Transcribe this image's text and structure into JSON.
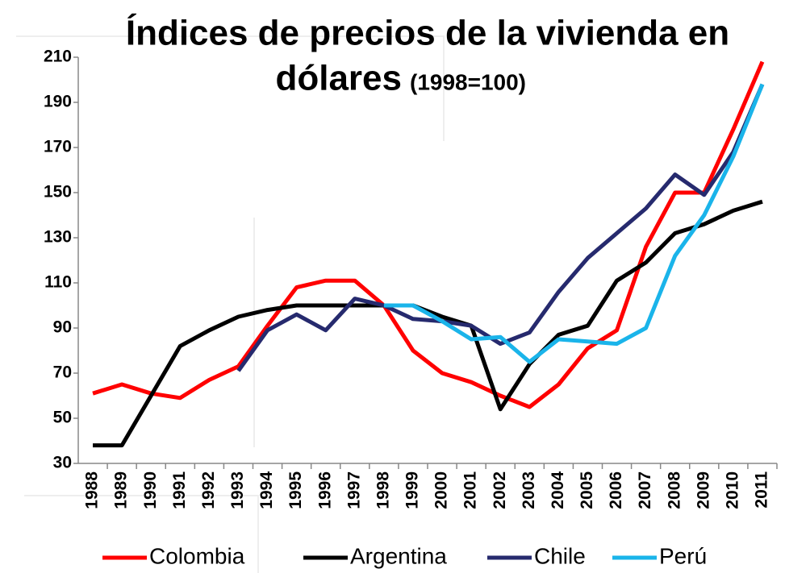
{
  "chart_data": {
    "type": "line",
    "title_lines": [
      "Índices de precios de la vivienda en",
      "dólares"
    ],
    "title_suffix": "(1998=100)",
    "categories": [
      "1988",
      "1989",
      "1990",
      "1991",
      "1992",
      "1993",
      "1994",
      "1995",
      "1996",
      "1997",
      "1998",
      "1999",
      "2000",
      "2001",
      "2002",
      "2003",
      "2004",
      "2005",
      "2006",
      "2007",
      "2008",
      "2009",
      "2010",
      "2011"
    ],
    "series": [
      {
        "name": "Colombia",
        "color": "#ff0000",
        "values": [
          61,
          65,
          61,
          59,
          67,
          73,
          91,
          108,
          111,
          111,
          100,
          80,
          70,
          66,
          60,
          55,
          65,
          81,
          89,
          126,
          150,
          150,
          178,
          208
        ]
      },
      {
        "name": "Argentina",
        "color": "#000000",
        "values": [
          38,
          38,
          60,
          82,
          89,
          95,
          98,
          100,
          100,
          100,
          100,
          100,
          95,
          91,
          54,
          74,
          87,
          91,
          111,
          119,
          132,
          136,
          142,
          146
        ]
      },
      {
        "name": "Chile",
        "color": "#262a6e",
        "values": [
          null,
          null,
          null,
          null,
          null,
          71,
          89,
          96,
          89,
          103,
          100,
          94,
          93,
          91,
          83,
          88,
          106,
          121,
          132,
          143,
          158,
          149,
          168,
          198
        ]
      },
      {
        "name": "Perú",
        "color": "#1ab4ea",
        "values": [
          null,
          null,
          null,
          null,
          null,
          null,
          null,
          null,
          null,
          null,
          100,
          100,
          93,
          85,
          86,
          75,
          85,
          84,
          83,
          90,
          122,
          140,
          166,
          198
        ]
      }
    ],
    "ylim": [
      30,
      210
    ],
    "yticks": [
      30,
      50,
      70,
      90,
      110,
      130,
      150,
      170,
      190,
      210
    ],
    "grid": false,
    "legend": "bottom"
  }
}
